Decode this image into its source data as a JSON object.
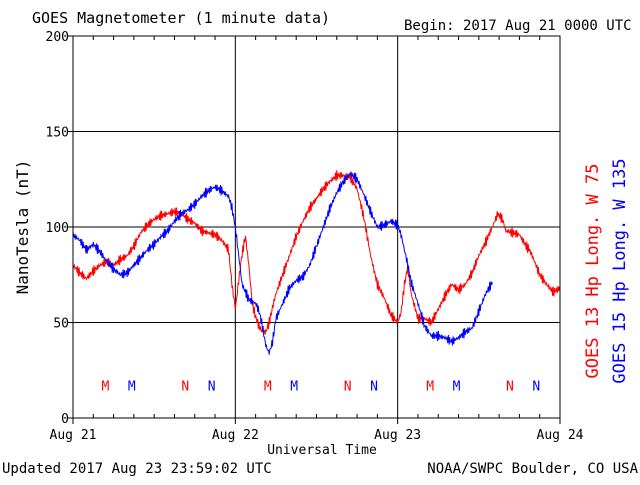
{
  "header": {
    "title": "GOES Magnetometer (1 minute data)",
    "begin": "Begin:  2017 Aug 21 0000 UTC"
  },
  "footer": {
    "updated": "Updated 2017 Aug 23 23:59:02 UTC",
    "source": "NOAA/SWPC Boulder, CO USA"
  },
  "chart_data": {
    "type": "line",
    "title": "GOES Magnetometer (1 minute data)",
    "xlabel": "Universal Time",
    "ylabel": "NanoTesla (nT)",
    "xlim": [
      0,
      72
    ],
    "ylim": [
      0,
      200
    ],
    "x_unit": "hours since Aug 21 0000 UTC",
    "yticks": [
      0,
      50,
      100,
      150,
      200
    ],
    "ytick_labels": [
      "0",
      "50",
      "100",
      "150",
      "200"
    ],
    "xticks": [
      0,
      24,
      48,
      72
    ],
    "xtick_labels": [
      "Aug 21",
      "Aug 22",
      "Aug 23",
      "Aug 24"
    ],
    "grid": true,
    "legend_position": "right (vertical)",
    "series": [
      {
        "name": "GOES 13 Hp  Long. W 75",
        "color": "#ff0000",
        "points": [
          [
            0,
            80
          ],
          [
            1,
            76
          ],
          [
            2,
            73
          ],
          [
            3,
            77
          ],
          [
            4,
            80
          ],
          [
            5,
            82
          ],
          [
            6,
            80
          ],
          [
            7,
            83
          ],
          [
            8,
            85
          ],
          [
            9,
            90
          ],
          [
            10,
            97
          ],
          [
            11,
            101
          ],
          [
            12,
            104
          ],
          [
            13,
            106
          ],
          [
            14,
            107
          ],
          [
            15,
            108
          ],
          [
            16,
            107
          ],
          [
            17,
            104
          ],
          [
            18,
            102
          ],
          [
            19,
            98
          ],
          [
            20,
            97
          ],
          [
            21,
            96
          ],
          [
            22,
            93
          ],
          [
            23,
            88
          ],
          [
            23.5,
            70
          ],
          [
            24,
            57
          ],
          [
            24.5,
            72
          ],
          [
            25,
            86
          ],
          [
            25.5,
            95
          ],
          [
            26,
            80
          ],
          [
            26.5,
            60
          ],
          [
            27,
            53
          ],
          [
            27.5,
            48
          ],
          [
            28,
            45
          ],
          [
            28.5,
            45
          ],
          [
            29,
            50
          ],
          [
            29.5,
            58
          ],
          [
            30,
            65
          ],
          [
            31,
            75
          ],
          [
            32,
            85
          ],
          [
            33,
            95
          ],
          [
            34,
            103
          ],
          [
            35,
            110
          ],
          [
            36,
            115
          ],
          [
            37,
            120
          ],
          [
            38,
            124
          ],
          [
            39,
            127
          ],
          [
            40,
            127
          ],
          [
            41,
            126
          ],
          [
            42,
            120
          ],
          [
            43,
            105
          ],
          [
            44,
            85
          ],
          [
            45,
            70
          ],
          [
            46,
            63
          ],
          [
            47,
            54
          ],
          [
            48,
            50
          ],
          [
            48.5,
            55
          ],
          [
            49,
            70
          ],
          [
            49.5,
            79
          ],
          [
            50,
            65
          ],
          [
            51,
            52
          ],
          [
            52,
            52
          ],
          [
            53,
            50
          ],
          [
            54,
            57
          ],
          [
            55,
            64
          ],
          [
            56,
            70
          ],
          [
            57,
            67
          ],
          [
            58,
            70
          ],
          [
            59,
            76
          ],
          [
            60,
            85
          ],
          [
            61,
            92
          ],
          [
            62,
            100
          ],
          [
            62.8,
            107
          ],
          [
            63.5,
            104
          ],
          [
            64,
            98
          ],
          [
            65,
            97
          ],
          [
            66,
            96
          ],
          [
            67,
            90
          ],
          [
            67.5,
            88
          ],
          [
            68,
            84
          ],
          [
            69,
            75
          ],
          [
            70,
            70
          ],
          [
            71,
            66
          ],
          [
            72,
            68
          ]
        ]
      },
      {
        "name": "GOES 15 Hp  Long. W 135",
        "color": "#0000ff",
        "points": [
          [
            0,
            96
          ],
          [
            1,
            93
          ],
          [
            2,
            88
          ],
          [
            3,
            91
          ],
          [
            4,
            87
          ],
          [
            5,
            82
          ],
          [
            6,
            78
          ],
          [
            7,
            75
          ],
          [
            8,
            76
          ],
          [
            9,
            80
          ],
          [
            10,
            84
          ],
          [
            11,
            88
          ],
          [
            12,
            91
          ],
          [
            13,
            95
          ],
          [
            14,
            98
          ],
          [
            15,
            103
          ],
          [
            16,
            107
          ],
          [
            17,
            109
          ],
          [
            18,
            112
          ],
          [
            19,
            116
          ],
          [
            20,
            119
          ],
          [
            21,
            121
          ],
          [
            22,
            119
          ],
          [
            23,
            116
          ],
          [
            23.5,
            110
          ],
          [
            24,
            100
          ],
          [
            24.5,
            85
          ],
          [
            25,
            70
          ],
          [
            26,
            62
          ],
          [
            27,
            60
          ],
          [
            27.5,
            56
          ],
          [
            28,
            48
          ],
          [
            28.5,
            38
          ],
          [
            29,
            34
          ],
          [
            29.5,
            40
          ],
          [
            30,
            52
          ],
          [
            31,
            60
          ],
          [
            32,
            68
          ],
          [
            33,
            72
          ],
          [
            34,
            74
          ],
          [
            35,
            80
          ],
          [
            36,
            90
          ],
          [
            37,
            100
          ],
          [
            38,
            110
          ],
          [
            39,
            118
          ],
          [
            40,
            124
          ],
          [
            41,
            128
          ],
          [
            42,
            125
          ],
          [
            43,
            117
          ],
          [
            44,
            108
          ],
          [
            45,
            100
          ],
          [
            46,
            101
          ],
          [
            47,
            103
          ],
          [
            48,
            101
          ],
          [
            48.5,
            96
          ],
          [
            49,
            88
          ],
          [
            49.5,
            80
          ],
          [
            50,
            71
          ],
          [
            51,
            60
          ],
          [
            52,
            48
          ],
          [
            53,
            43
          ],
          [
            54,
            43
          ],
          [
            55,
            42
          ],
          [
            56,
            40
          ],
          [
            57,
            42
          ],
          [
            58,
            45
          ],
          [
            59,
            47
          ],
          [
            60,
            56
          ],
          [
            61,
            65
          ],
          [
            62,
            71
          ]
        ]
      }
    ],
    "annotations": [
      {
        "label": "M",
        "x": 4.8,
        "color": "#ff0000"
      },
      {
        "label": "M",
        "x": 8.7,
        "color": "#0000ff"
      },
      {
        "label": "N",
        "x": 16.6,
        "color": "#ff0000"
      },
      {
        "label": "N",
        "x": 20.5,
        "color": "#0000ff"
      },
      {
        "label": "M",
        "x": 28.8,
        "color": "#ff0000"
      },
      {
        "label": "M",
        "x": 32.7,
        "color": "#0000ff"
      },
      {
        "label": "N",
        "x": 40.6,
        "color": "#ff0000"
      },
      {
        "label": "N",
        "x": 44.5,
        "color": "#0000ff"
      },
      {
        "label": "M",
        "x": 52.8,
        "color": "#ff0000"
      },
      {
        "label": "M",
        "x": 56.7,
        "color": "#0000ff"
      },
      {
        "label": "N",
        "x": 64.6,
        "color": "#ff0000"
      },
      {
        "label": "N",
        "x": 68.5,
        "color": "#0000ff"
      }
    ],
    "annotation_y": 17
  }
}
